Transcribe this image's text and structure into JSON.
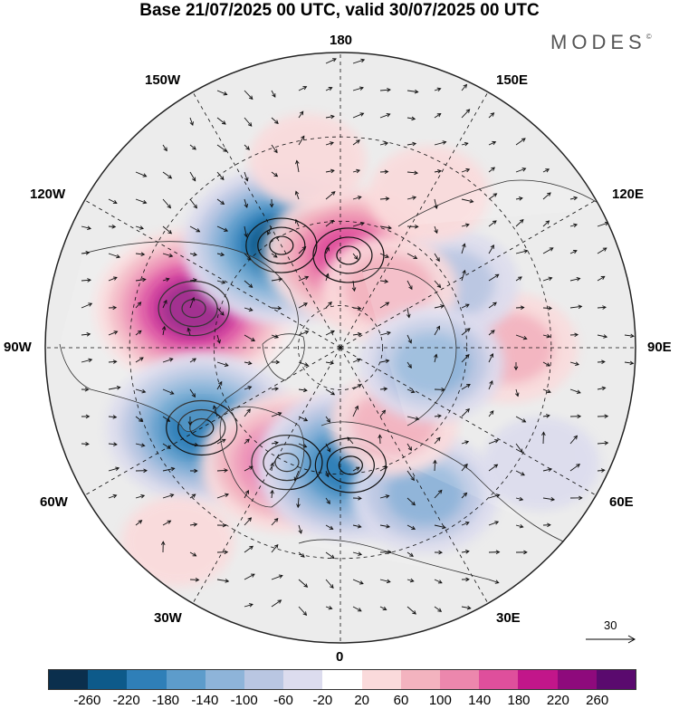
{
  "title": "Base 21/07/2025 00 UTC, valid 30/07/2025 00 UTC",
  "brand": {
    "name": "MODES",
    "mark": "©"
  },
  "longitude_labels": {
    "top": "180",
    "bottom": "0",
    "left": "90W",
    "right": "90E",
    "upper_left_outer": "150W",
    "upper_left_inner": "120W",
    "upper_right_outer": "150E",
    "upper_right_inner": "120E",
    "lower_left_outer": "30W",
    "lower_left_inner": "60W",
    "lower_right_outer": "30E",
    "lower_right_inner": "60E"
  },
  "wind_reference": {
    "value": "30"
  },
  "colorbar": {
    "colors": [
      "#0b2f4d",
      "#0d5a8a",
      "#2f7fb8",
      "#5d9ccb",
      "#8eb4d9",
      "#b9c6e2",
      "#dcdcee",
      "#ffffff",
      "#fadadb",
      "#f3b3bf",
      "#ec87ad",
      "#df4f9c",
      "#c2168a",
      "#8e0a7c",
      "#5a0a6e"
    ],
    "ticks": [
      "-260",
      "-220",
      "-180",
      "-140",
      "-100",
      "-60",
      "-20",
      "20",
      "60",
      "100",
      "140",
      "180",
      "220",
      "260"
    ]
  },
  "anomalies": [
    {
      "lon": -105,
      "lat": 54,
      "value": 230
    },
    {
      "lon": -150,
      "lat": 62,
      "value": -230
    },
    {
      "lon": 175,
      "lat": 68,
      "value": 160
    },
    {
      "lon": -60,
      "lat": 52,
      "value": -210
    },
    {
      "lon": -25,
      "lat": 60,
      "value": 170
    },
    {
      "lon": 5,
      "lat": 62,
      "value": -210
    },
    {
      "lon": 90,
      "lat": 50,
      "value": 80
    },
    {
      "lon": 120,
      "lat": 60,
      "value": -80
    },
    {
      "lon": 140,
      "lat": 72,
      "value": 80
    },
    {
      "lon": 30,
      "lat": 50,
      "value": -110
    },
    {
      "lon": 35,
      "lat": 68,
      "value": 60
    },
    {
      "lon": 150,
      "lat": 48,
      "value": 40
    },
    {
      "lon": -170,
      "lat": 45,
      "value": 30
    },
    {
      "lon": 80,
      "lat": 68,
      "value": -100
    },
    {
      "lon": 60,
      "lat": 35,
      "value": -30
    },
    {
      "lon": -40,
      "lat": 30,
      "value": 20
    }
  ]
}
